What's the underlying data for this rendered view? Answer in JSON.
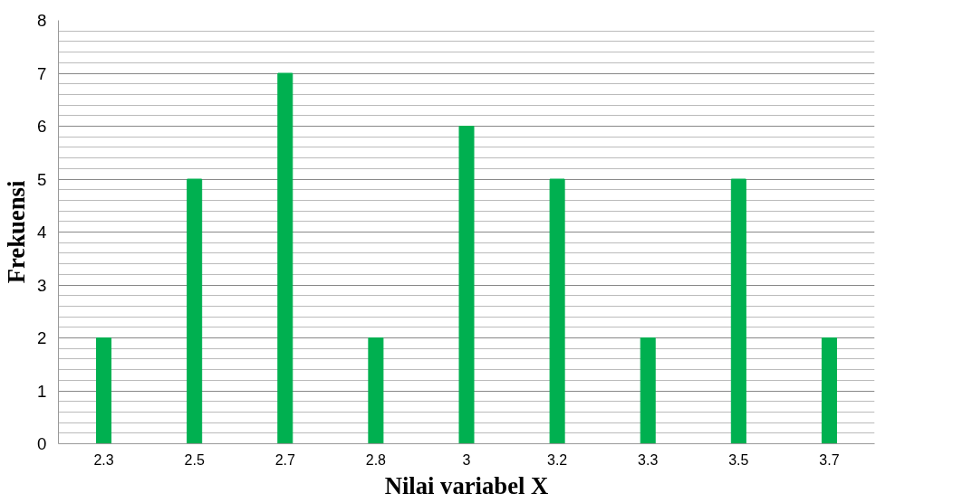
{
  "chart_data": {
    "type": "bar",
    "xlabel": "Nilai variabel X",
    "ylabel": "Frekuensi",
    "categories": [
      "2.3",
      "2.5",
      "2.7",
      "2.8",
      "3",
      "3.2",
      "3.3",
      "3.5",
      "3.7"
    ],
    "values": [
      2,
      5,
      7,
      2,
      6,
      5,
      2,
      5,
      2
    ],
    "color": "#00b050",
    "ylim": [
      0,
      8
    ],
    "yticks": [
      0,
      1,
      2,
      3,
      4,
      5,
      6,
      7,
      8
    ],
    "grid": "y"
  }
}
